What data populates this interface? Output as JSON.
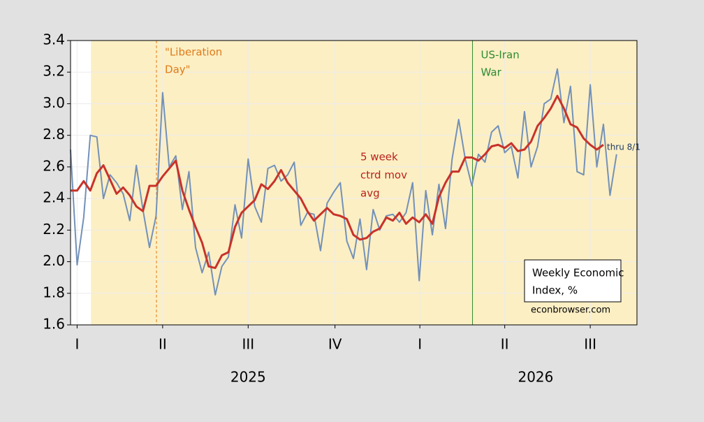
{
  "chart_data": {
    "type": "line",
    "x": [
      0,
      1,
      2,
      3,
      4,
      5,
      6,
      7,
      8,
      9,
      10,
      11,
      12,
      13,
      14,
      15,
      16,
      17,
      18,
      19,
      20,
      21,
      22,
      23,
      24,
      25,
      26,
      27,
      28,
      29,
      30,
      31,
      32,
      33,
      34,
      35,
      36,
      37,
      38,
      39,
      40,
      41,
      42,
      43,
      44,
      45,
      46,
      47,
      48,
      49,
      50,
      51,
      52,
      53,
      54,
      55,
      56,
      57,
      58,
      59,
      60,
      61,
      62,
      63,
      64,
      65,
      66,
      67,
      68,
      69,
      70,
      71,
      72,
      73,
      74,
      75,
      76,
      77,
      78,
      79,
      80,
      81,
      82,
      83
    ],
    "series": [
      {
        "name": "Weekly Economic Index, %",
        "color": "#7391b8",
        "width": 2,
        "values": [
          2.71,
          1.98,
          2.28,
          2.8,
          2.79,
          2.4,
          2.55,
          2.5,
          2.43,
          2.26,
          2.61,
          2.33,
          2.09,
          2.29,
          3.07,
          2.6,
          2.67,
          2.33,
          2.57,
          2.09,
          1.93,
          2.06,
          1.79,
          1.97,
          2.03,
          2.36,
          2.15,
          2.65,
          2.35,
          2.25,
          2.59,
          2.61,
          2.51,
          2.55,
          2.63,
          2.23,
          2.31,
          2.3,
          2.07,
          2.37,
          2.44,
          2.5,
          2.13,
          2.02,
          2.27,
          1.95,
          2.33,
          2.2,
          2.29,
          2.3,
          2.25,
          2.31,
          2.5,
          1.88,
          2.45,
          2.17,
          2.49,
          2.21,
          2.65,
          2.9,
          2.65,
          2.48,
          2.68,
          2.63,
          2.82,
          2.86,
          2.69,
          2.73,
          2.53,
          2.95,
          2.6,
          2.73,
          3.0,
          3.03,
          3.22,
          2.88,
          3.11,
          2.57,
          2.55,
          3.12,
          2.6,
          2.87,
          2.42,
          2.68
        ]
      },
      {
        "name": "5 week ctrd mov avg",
        "color": "#c8322a",
        "width": 3,
        "values": [
          2.45,
          2.45,
          2.51,
          2.45,
          2.56,
          2.61,
          2.52,
          2.43,
          2.47,
          2.42,
          2.35,
          2.32,
          2.48,
          2.48,
          2.54,
          2.59,
          2.64,
          2.45,
          2.33,
          2.22,
          2.12,
          1.97,
          1.96,
          2.04,
          2.06,
          2.22,
          2.31,
          2.35,
          2.39,
          2.49,
          2.46,
          2.51,
          2.58,
          2.5,
          2.45,
          2.4,
          2.32,
          2.26,
          2.3,
          2.34,
          2.3,
          2.29,
          2.27,
          2.17,
          2.14,
          2.15,
          2.19,
          2.21,
          2.28,
          2.26,
          2.31,
          2.24,
          2.28,
          2.25,
          2.3,
          2.24,
          2.41,
          2.5,
          2.57,
          2.57,
          2.66,
          2.66,
          2.64,
          2.68,
          2.73,
          2.74,
          2.72,
          2.75,
          2.7,
          2.71,
          2.76,
          2.86,
          2.91,
          2.97,
          3.05,
          2.97,
          2.87,
          2.85,
          2.78,
          2.74,
          2.71,
          2.74,
          null,
          null
        ]
      }
    ],
    "xlim": [
      0,
      86.1
    ],
    "xticks": [
      {
        "value": 1,
        "label": "I"
      },
      {
        "value": 14,
        "label": "II"
      },
      {
        "value": 27,
        "label": "III"
      },
      {
        "value": 40.2,
        "label": "IV"
      },
      {
        "value": 53.1,
        "label": "I"
      },
      {
        "value": 66,
        "label": "II"
      },
      {
        "value": 79,
        "label": "III"
      }
    ],
    "years": [
      {
        "value": 27,
        "label": "2025"
      },
      {
        "value": 70.7,
        "label": "2026"
      }
    ],
    "ylim": [
      1.6,
      3.4
    ],
    "yticks": [
      {
        "value": 1.6,
        "label": "1.6"
      },
      {
        "value": 1.8,
        "label": "1.8"
      },
      {
        "value": 2.0,
        "label": "2.0"
      },
      {
        "value": 2.2,
        "label": "2.2"
      },
      {
        "value": 2.4,
        "label": "2.4"
      },
      {
        "value": 2.6,
        "label": "2.6"
      },
      {
        "value": 2.8,
        "label": "2.8"
      },
      {
        "value": 3.0,
        "label": "3.0"
      },
      {
        "value": 3.2,
        "label": "3.2"
      },
      {
        "value": 3.4,
        "label": "3.4"
      }
    ],
    "grid": true,
    "shade": {
      "from": 3.1,
      "to": 86.1,
      "color": "#fcefc4"
    },
    "events": [
      {
        "x": 13.06,
        "color": "#e07b1a",
        "dashed": true,
        "label": [
          "\"Liberation",
          "Day\""
        ]
      },
      {
        "x": 61.1,
        "color": "#2e8b2e",
        "dashed": false,
        "label": [
          "US-Iran",
          "War"
        ]
      }
    ],
    "ma_label": [
      "5 week",
      "ctrd mov",
      "avg"
    ],
    "end_note": "thru 8/1",
    "legend": [
      "Weekly Economic",
      "Index, %"
    ],
    "source": "econbrowser.com"
  }
}
